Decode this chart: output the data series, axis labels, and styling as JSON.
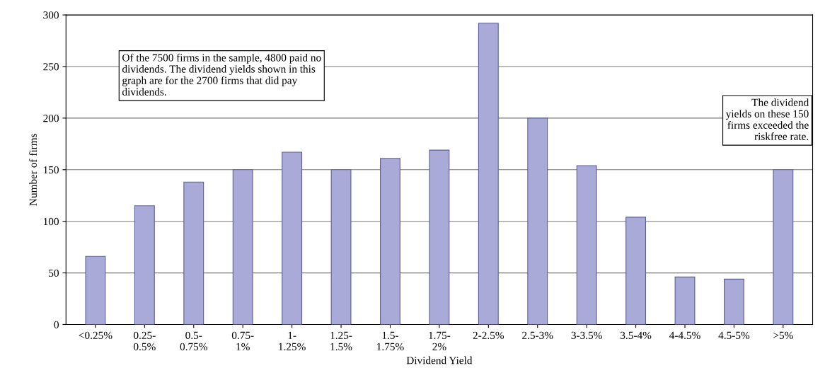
{
  "chart_data": {
    "type": "bar",
    "xlabel": "Dividend Yield",
    "ylabel": "Number of firms",
    "categories": [
      "<0.25%",
      "0.25-\n0.5%",
      "0.5-\n0.75%",
      "0.75-\n1%",
      "1-\n1.25%",
      "1.25-\n1.5%",
      "1.5-\n1.75%",
      "1.75-\n2%",
      "2-2.5%",
      "2.5-3%",
      "3-3.5%",
      "3.5-4%",
      "4-4.5%",
      "4.5-5%",
      ">5%"
    ],
    "values": [
      66,
      115,
      138,
      150,
      167,
      150,
      161,
      169,
      292,
      200,
      154,
      104,
      46,
      44,
      150
    ],
    "color": "#aaaad8",
    "ylim": [
      0,
      300
    ],
    "yticks": [
      0,
      50,
      100,
      150,
      200,
      250,
      300
    ],
    "grid": "y",
    "annotations": [
      "Of the 7500 firms in the sample, 4800 paid no\ndividends. The dividend yields shown in this\ngraph are for the 2700 firms that did pay\ndividends.",
      "The dividend\nyields on these 150\nfirms exceeded the\nriskfree rate."
    ]
  }
}
